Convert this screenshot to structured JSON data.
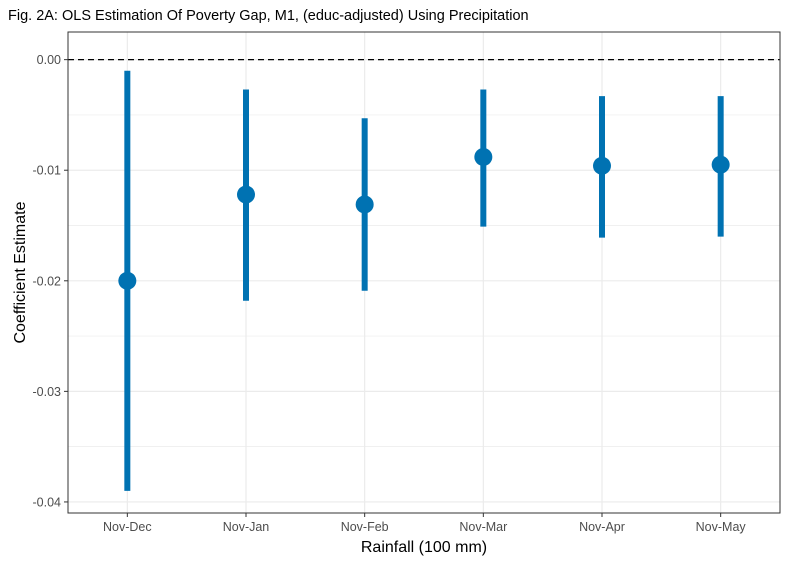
{
  "chart_data": {
    "type": "errorbar",
    "title": "Fig. 2A: OLS Estimation Of Poverty Gap, M1, (educ-adjusted) Using Precipitation",
    "xlabel": "Rainfall (100 mm)",
    "ylabel": "Coefficient Estimate",
    "categories": [
      "Nov-Dec",
      "Nov-Jan",
      "Nov-Feb",
      "Nov-Mar",
      "Nov-Apr",
      "Nov-May"
    ],
    "estimates": [
      -0.02,
      -0.0122,
      -0.0131,
      -0.0088,
      -0.0096,
      -0.0095
    ],
    "ci_low": [
      -0.039,
      -0.0218,
      -0.0209,
      -0.0151,
      -0.0161,
      -0.016
    ],
    "ci_high": [
      -0.001,
      -0.0027,
      -0.0053,
      -0.0027,
      -0.0033,
      -0.0033
    ],
    "yticks": [
      0.0,
      -0.01,
      -0.02,
      -0.03,
      -0.04
    ],
    "ytick_labels": [
      "0.00",
      "-0.01",
      "-0.02",
      "-0.03",
      "-0.04"
    ],
    "ylim": [
      -0.041,
      0.0025
    ],
    "reference_line": 0.0,
    "grid": true,
    "colors": {
      "series": "#0072b2",
      "reference": "#000000",
      "grid": "#ebebeb",
      "panel_border": "#333333"
    }
  }
}
